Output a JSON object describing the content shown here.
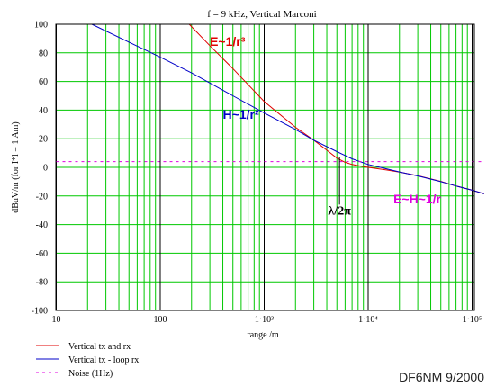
{
  "chart_data": {
    "type": "line",
    "title": "f = 9 kHz, Vertical Marconi",
    "xlabel": "range /m",
    "ylabel": "dBuV/m (for I*l = 1 Am)",
    "x_scale": "log",
    "xlim": [
      10,
      130000
    ],
    "ylim": [
      -100,
      100
    ],
    "x_ticks": [
      {
        "value": 10,
        "label": "10"
      },
      {
        "value": 100,
        "label": "100"
      },
      {
        "value": 1000,
        "label": "1·10³"
      },
      {
        "value": 10000,
        "label": "1·10⁴"
      },
      {
        "value": 100000,
        "label": "1·10⁵"
      }
    ],
    "y_ticks": [
      -100,
      -80,
      -60,
      -40,
      -20,
      0,
      20,
      40,
      60,
      80,
      100
    ],
    "y_tick_labels": [
      "-100",
      "-80",
      "-60",
      "-40",
      "-20",
      "0",
      "20",
      "40",
      "60",
      "80",
      "100"
    ],
    "grid": true,
    "series": [
      {
        "name": "Vertical tx  and rx",
        "color": "#e00000",
        "x": [
          190,
          300,
          500,
          1000,
          2000,
          3000,
          4000,
          5000,
          6000,
          7000,
          8000,
          10000,
          15000,
          20000,
          30000,
          50000,
          70000,
          100000,
          130000
        ],
        "y": [
          100,
          85,
          69,
          46,
          28,
          19,
          12,
          6.5,
          3.5,
          2,
          1.2,
          0,
          -1.8,
          -3.3,
          -5.8,
          -9.8,
          -13,
          -16,
          -18.5
        ]
      },
      {
        "name": "Vertical tx  - loop rx",
        "color": "#0000c8",
        "x": [
          22,
          50,
          100,
          200,
          500,
          1000,
          2000,
          3000,
          5000,
          7000,
          10000,
          15000,
          20000,
          30000,
          50000,
          70000,
          100000,
          130000
        ],
        "y": [
          100,
          87.5,
          77,
          66,
          50,
          38,
          26.5,
          19,
          11,
          6,
          2,
          -1,
          -3.2,
          -6,
          -10,
          -13,
          -16,
          -18.5
        ]
      },
      {
        "name": "Noise (1Hz)",
        "color": "#e000e0",
        "x": [
          10,
          130000
        ],
        "y": [
          4,
          4
        ]
      }
    ],
    "annotations": [
      {
        "text": "E~1/r³",
        "x": 300,
        "y": 85,
        "color": "#e00000"
      },
      {
        "text": "H~1/r²",
        "x": 400,
        "y": 34,
        "color": "#0000c8"
      },
      {
        "text": "λ/2π",
        "x": 5300,
        "y": -33,
        "color": "#000000"
      },
      {
        "text": "E~H~1/r",
        "x": 17500,
        "y": -25,
        "color": "#e000e0"
      }
    ],
    "marker_x": 5300,
    "legend_position": "bottom-left",
    "credit": "DF6NM 9/2000"
  }
}
